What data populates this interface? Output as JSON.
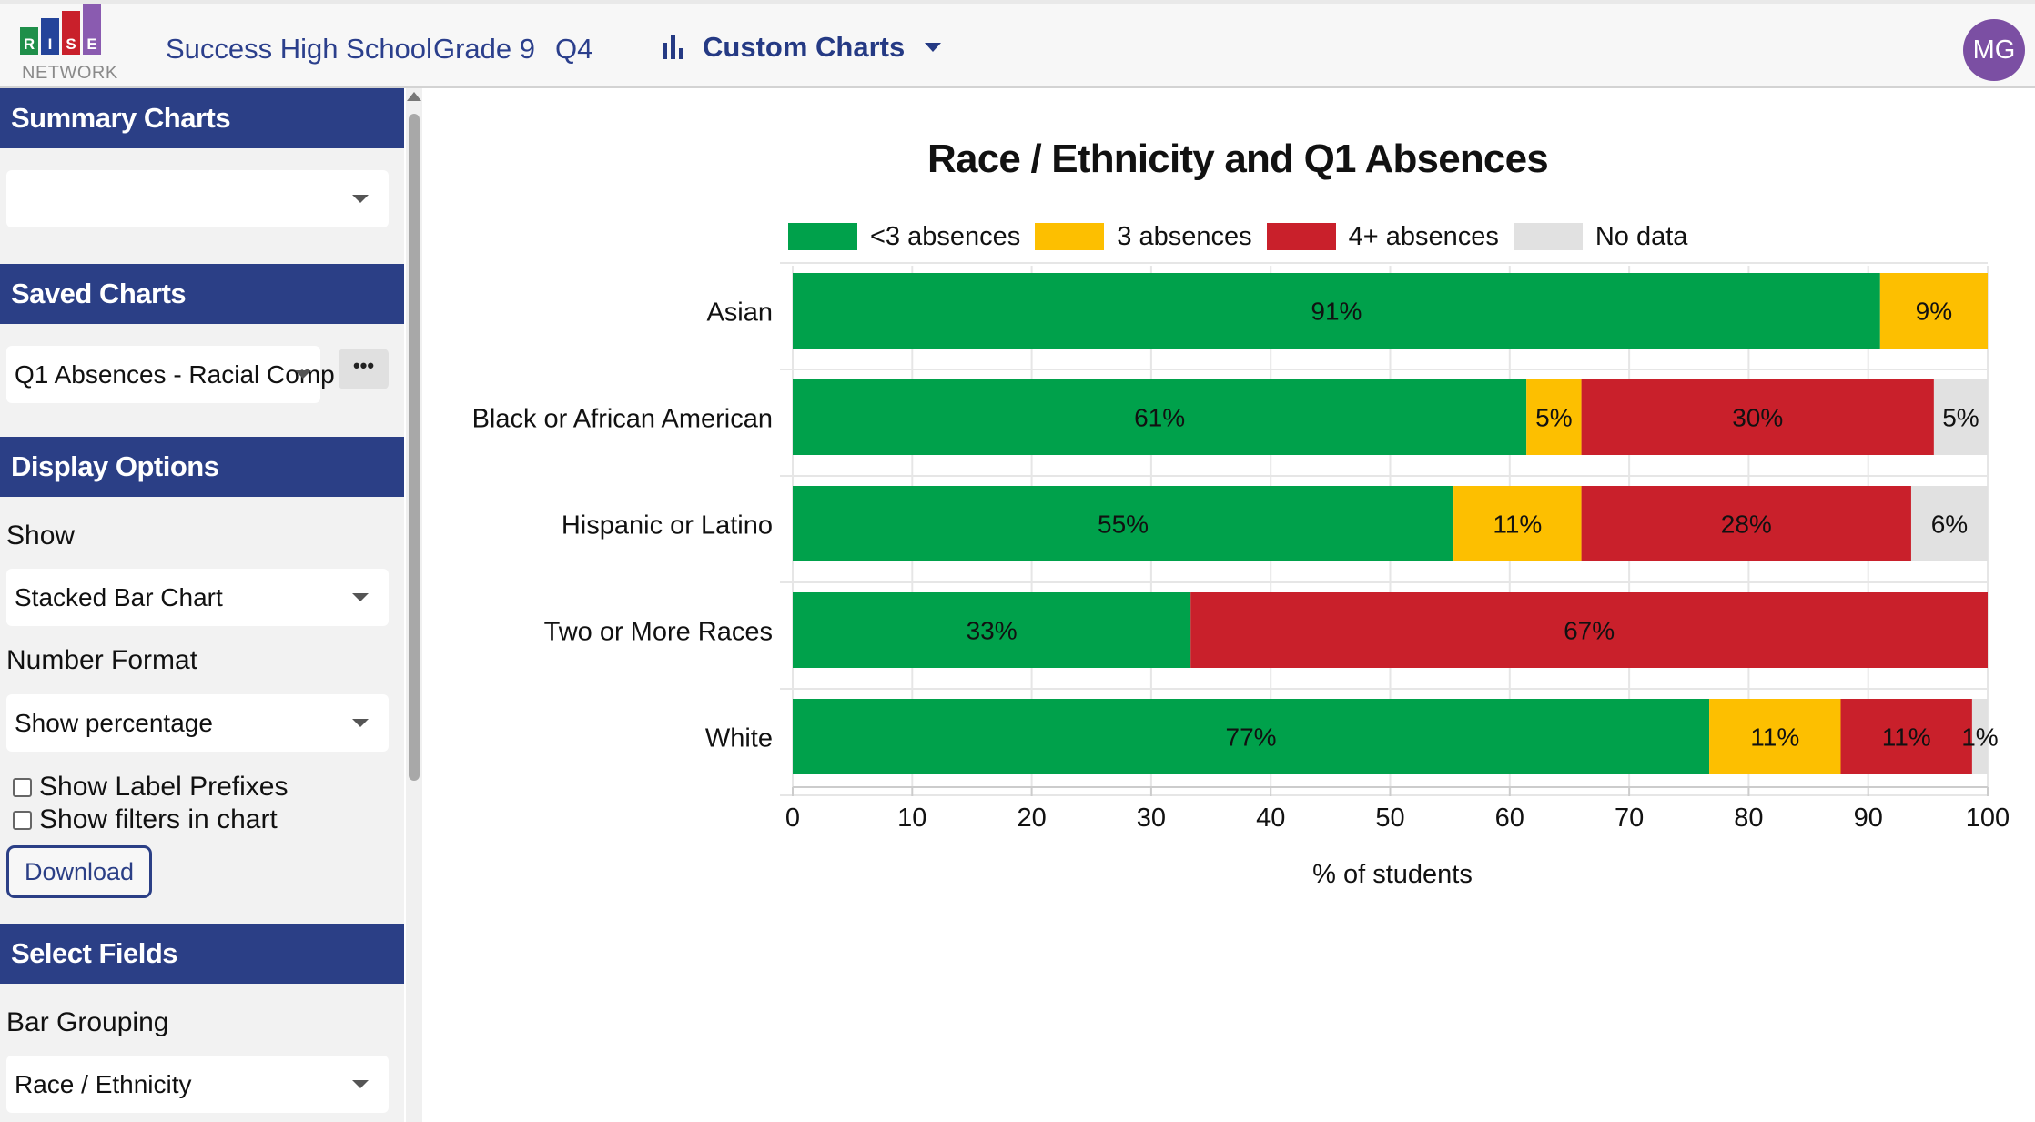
{
  "header": {
    "logo": {
      "letters": [
        "R",
        "I",
        "S",
        "E"
      ],
      "subtitle": "NETWORK"
    },
    "school": "Success High School",
    "grade": "Grade 9",
    "quarter": "Q4",
    "menu_label": "Custom Charts",
    "menu_icon": "bar-chart-icon",
    "avatar_initials": "MG"
  },
  "sidebar": {
    "summary_charts": {
      "title": "Summary Charts",
      "selected": ""
    },
    "saved_charts": {
      "title": "Saved Charts",
      "selected": "Q1 Absences - Racial Comp",
      "more_label": "•••"
    },
    "display_options": {
      "title": "Display Options",
      "show_label": "Show",
      "show_value": "Stacked Bar Chart",
      "number_format_label": "Number Format",
      "number_format_value": "Show percentage",
      "checkbox_prefixes": "Show Label Prefixes",
      "checkbox_filters": "Show filters in chart",
      "download_label": "Download"
    },
    "select_fields": {
      "title": "Select Fields",
      "bar_grouping_label": "Bar Grouping",
      "bar_grouping_value": "Race / Ethnicity"
    }
  },
  "chart_data": {
    "type": "bar",
    "orientation": "horizontal",
    "stacked": true,
    "title": "Race / Ethnicity and Q1 Absences",
    "xlabel": "% of students",
    "ylabel": "",
    "xlim": [
      0,
      100
    ],
    "xticks": [
      0,
      10,
      20,
      30,
      40,
      50,
      60,
      70,
      80,
      90,
      100
    ],
    "grid": true,
    "legend_position": "top",
    "categories": [
      "Asian",
      "Black or African American",
      "Hispanic or Latino",
      "Two or More Races",
      "White"
    ],
    "series": [
      {
        "name": "<3 absences",
        "color": "#00a14b",
        "values": [
          91,
          61,
          55,
          33,
          77
        ],
        "labels": [
          "91%",
          "61%",
          "55%",
          "33%",
          "77%"
        ]
      },
      {
        "name": "3 absences",
        "color": "#fdbf00",
        "values": [
          9,
          5,
          11,
          0,
          11
        ],
        "labels": [
          "9%",
          "5%",
          "11%",
          "",
          "11%"
        ]
      },
      {
        "name": "4+ absences",
        "color": "#c9202b",
        "values": [
          0,
          30,
          28,
          67,
          11
        ],
        "labels": [
          "",
          "30%",
          "28%",
          "67%",
          "11%"
        ]
      },
      {
        "name": "No data",
        "color": "#e1e1e1",
        "values": [
          0,
          5,
          6,
          0,
          1
        ],
        "labels": [
          "",
          "5%",
          "6%",
          "",
          "1%"
        ]
      }
    ],
    "display_widths": [
      [
        91,
        9,
        0,
        0
      ],
      [
        61.4,
        4.6,
        29.5,
        4.5
      ],
      [
        55.3,
        10.7,
        27.6,
        6.4
      ],
      [
        33.3,
        0,
        66.7,
        0
      ],
      [
        76.7,
        11,
        11,
        1.3
      ]
    ]
  }
}
